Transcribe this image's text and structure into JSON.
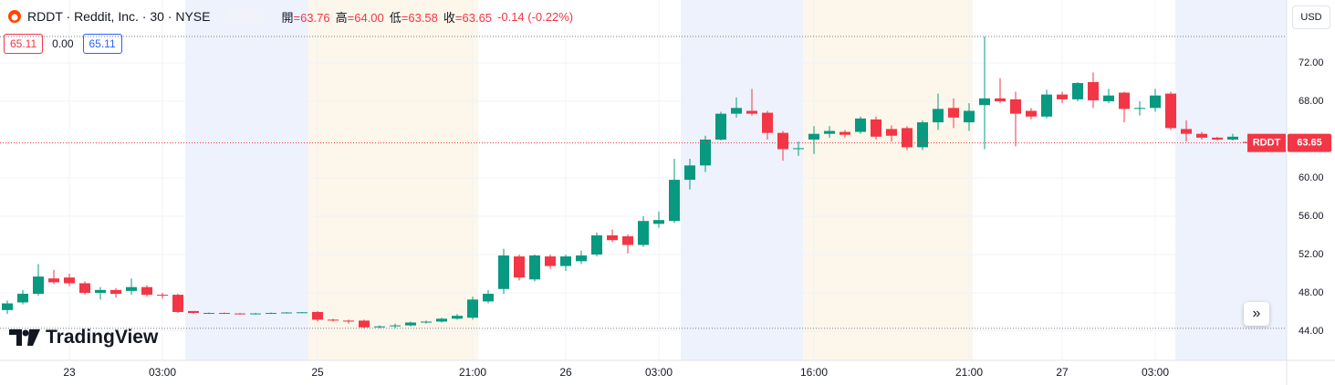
{
  "chart_data": {
    "type": "candlestick",
    "title": "RDDT · Reddit, Inc. · 30 · NYSE",
    "categories": [
      null,
      null,
      null,
      null,
      "23",
      null,
      null,
      null,
      null,
      null,
      "03:00",
      null,
      null,
      null,
      null,
      null,
      null,
      null,
      null,
      null,
      "25",
      null,
      null,
      null,
      null,
      null,
      null,
      null,
      null,
      null,
      "21:00",
      null,
      null,
      null,
      null,
      null,
      "26",
      null,
      null,
      null,
      null,
      null,
      "03:00",
      null,
      null,
      null,
      null,
      null,
      null,
      null,
      null,
      null,
      "16:00",
      null,
      null,
      null,
      null,
      null,
      null,
      null,
      null,
      null,
      "21:00",
      null,
      null,
      null,
      null,
      null,
      "27",
      null,
      null,
      null,
      null,
      null,
      "03:00",
      null,
      null,
      null,
      null,
      null,
      null
    ],
    "series": [
      {
        "name": "RDDT",
        "up_color": "#089981",
        "down_color": "#f23645",
        "open": [
          46.2,
          47.0,
          47.9,
          49.5,
          49.6,
          49.0,
          48.0,
          48.3,
          48.2,
          48.6,
          47.8,
          47.8,
          46.1,
          45.85,
          45.9,
          45.85,
          45.8,
          45.85,
          45.9,
          45.95,
          46.0,
          45.2,
          45.1,
          45.1,
          44.4,
          44.5,
          44.6,
          44.9,
          45.0,
          45.3,
          45.4,
          47.1,
          48.4,
          51.8,
          49.4,
          51.8,
          50.8,
          51.3,
          52.0,
          54.0,
          53.9,
          53.0,
          55.2,
          55.5,
          59.8,
          61.3,
          64.0,
          66.7,
          67.0,
          66.8,
          64.7,
          63.0,
          64.0,
          64.6,
          64.8,
          64.8,
          66.1,
          65.1,
          65.2,
          63.2,
          65.8,
          67.3,
          65.8,
          67.6,
          68.3,
          68.2,
          67.0,
          66.4,
          68.7,
          68.2,
          70.0,
          68.0,
          68.9,
          67.2,
          67.3,
          68.8,
          65.1,
          64.6,
          64.2,
          64.0,
          63.76
        ],
        "high": [
          47.2,
          48.3,
          51.0,
          50.4,
          50.0,
          49.2,
          48.6,
          48.5,
          49.5,
          48.8,
          48.0,
          47.9,
          46.1,
          45.95,
          45.95,
          45.9,
          45.9,
          45.95,
          46.0,
          46.0,
          46.1,
          45.3,
          45.2,
          45.2,
          44.6,
          44.8,
          45.0,
          45.1,
          45.4,
          45.8,
          47.6,
          48.3,
          52.6,
          52.0,
          52.0,
          52.0,
          52.0,
          52.4,
          54.3,
          54.6,
          54.1,
          56.0,
          56.5,
          62.0,
          62.0,
          64.4,
          66.9,
          68.4,
          69.3,
          67.0,
          64.9,
          63.8,
          65.4,
          65.4,
          65.0,
          66.4,
          66.4,
          65.5,
          65.4,
          66.0,
          68.8,
          68.3,
          67.8,
          74.76,
          70.4,
          69.0,
          67.3,
          69.2,
          69.0,
          70.0,
          71.0,
          69.3,
          69.0,
          68.0,
          69.3,
          69.0,
          66.0,
          64.8,
          64.3,
          64.6,
          64.0
        ],
        "low": [
          45.8,
          46.8,
          47.7,
          48.9,
          48.7,
          47.8,
          47.3,
          47.5,
          47.8,
          47.6,
          47.4,
          45.9,
          45.8,
          45.8,
          45.8,
          45.75,
          45.75,
          45.8,
          45.85,
          45.9,
          45.0,
          45.0,
          44.8,
          44.3,
          44.3,
          44.3,
          44.5,
          44.8,
          44.9,
          45.2,
          45.2,
          46.9,
          47.9,
          49.3,
          49.2,
          50.5,
          50.3,
          51.0,
          51.8,
          53.3,
          52.1,
          52.8,
          54.8,
          55.3,
          58.8,
          60.6,
          63.9,
          66.3,
          66.5,
          64.0,
          61.8,
          62.3,
          62.5,
          64.2,
          64.2,
          64.6,
          64.0,
          63.8,
          62.9,
          62.9,
          65.0,
          65.2,
          64.9,
          63.0,
          67.8,
          63.3,
          66.1,
          66.2,
          67.8,
          68.0,
          67.3,
          67.8,
          65.8,
          66.5,
          66.9,
          65.0,
          63.8,
          64.0,
          63.9,
          63.9,
          63.58
        ],
        "close": [
          46.9,
          47.9,
          49.7,
          49.1,
          49.0,
          48.0,
          48.3,
          47.9,
          48.6,
          47.8,
          47.7,
          46.0,
          45.9,
          45.9,
          45.85,
          45.8,
          45.85,
          45.9,
          45.95,
          45.97,
          45.2,
          45.1,
          45.0,
          44.4,
          44.5,
          44.6,
          44.9,
          45.0,
          45.3,
          45.6,
          47.3,
          47.9,
          51.9,
          49.6,
          51.9,
          50.8,
          51.8,
          51.9,
          54.0,
          53.5,
          53.0,
          55.5,
          55.6,
          59.8,
          61.3,
          64.0,
          66.7,
          67.3,
          66.7,
          64.7,
          63.0,
          63.1,
          64.6,
          64.9,
          64.5,
          66.2,
          64.3,
          64.4,
          63.2,
          65.8,
          67.2,
          66.3,
          67.0,
          68.3,
          68.0,
          66.7,
          66.4,
          68.7,
          68.2,
          69.9,
          68.1,
          68.6,
          67.2,
          67.3,
          68.6,
          65.2,
          64.6,
          64.2,
          64.0,
          64.3,
          63.65
        ]
      }
    ],
    "ylim": [
      40.95,
      78.57
    ],
    "yticks": [
      {
        "value": 44,
        "label": "44.00"
      },
      {
        "value": 48,
        "label": "48.00"
      },
      {
        "value": 52,
        "label": "52.00"
      },
      {
        "value": 56,
        "label": "56.00"
      },
      {
        "value": 60,
        "label": "60.00"
      },
      {
        "value": 68,
        "label": "68.00"
      },
      {
        "value": 72,
        "label": "72.00"
      }
    ],
    "grid": true
  },
  "header": {
    "ohlc": [
      {
        "key": "開",
        "value": "=63.76"
      },
      {
        "key": "高",
        "value": "=64.00"
      },
      {
        "key": "低",
        "value": "=63.58"
      },
      {
        "key": "收",
        "value": "=63.65"
      }
    ],
    "change": "-0.14 (-0.22%)"
  },
  "order_panel": {
    "sell": "65.11",
    "spread": "0.00",
    "buy": "65.11"
  },
  "currency": "USD",
  "brand": "TradingView"
}
